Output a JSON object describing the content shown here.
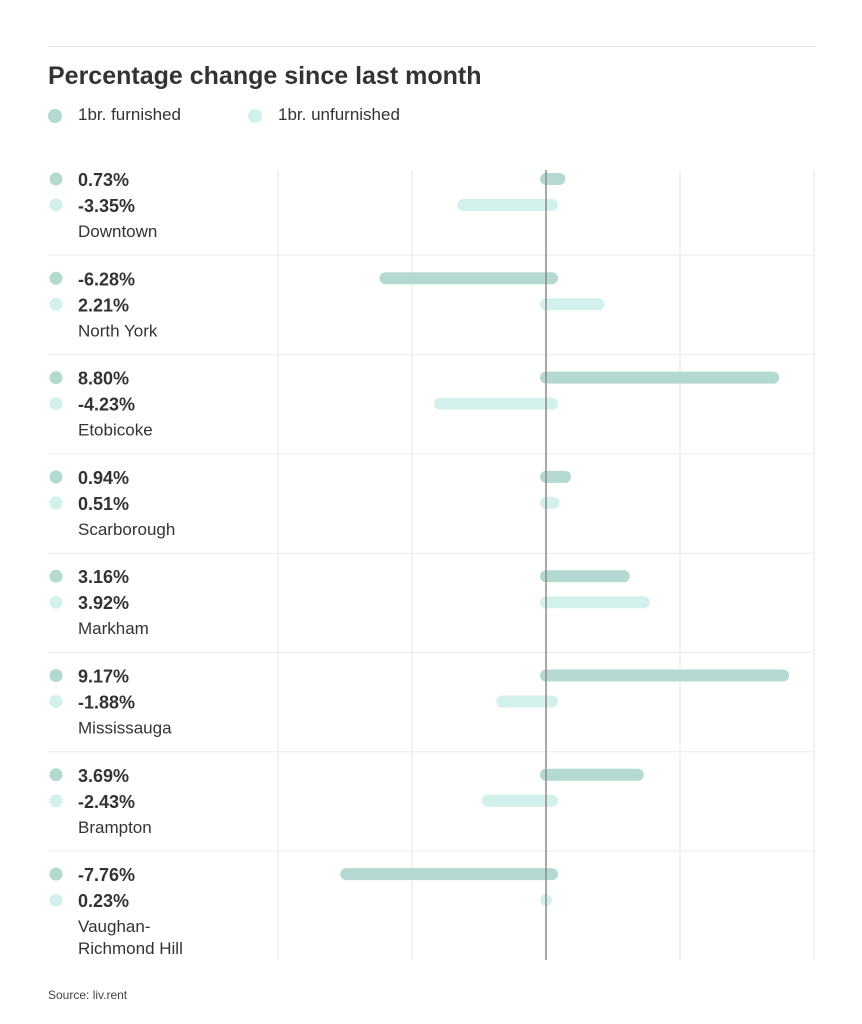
{
  "chart_data": {
    "type": "bar",
    "orientation": "horizontal",
    "title": "Percentage change since last month",
    "series": [
      {
        "name": "1br. furnished",
        "color": "#b3d9d0",
        "values": [
          0.73,
          -6.28,
          8.8,
          0.94,
          3.16,
          9.17,
          3.69,
          -7.76
        ],
        "labels": [
          "0.73%",
          "-6.28%",
          "8.80%",
          "0.94%",
          "3.16%",
          "9.17%",
          "3.69%",
          "-7.76%"
        ]
      },
      {
        "name": "1br. unfurnished",
        "color": "#d2f1ec",
        "values": [
          -3.35,
          2.21,
          -4.23,
          0.51,
          3.92,
          -1.88,
          -2.43,
          0.23
        ],
        "labels": [
          "-3.35%",
          "2.21%",
          "-4.23%",
          "0.51%",
          "3.92%",
          "-1.88%",
          "-2.43%",
          "0.23%"
        ]
      }
    ],
    "categories": [
      "Downtown",
      "North York",
      "Etobicoke",
      "Scarborough",
      "Markham",
      "Mississauga",
      "Brampton",
      "Vaughan-\nRichmond Hill"
    ],
    "xlim": [
      -10,
      10
    ],
    "grid": true,
    "legend_position": "top-left"
  },
  "source": "Source: liv.rent"
}
